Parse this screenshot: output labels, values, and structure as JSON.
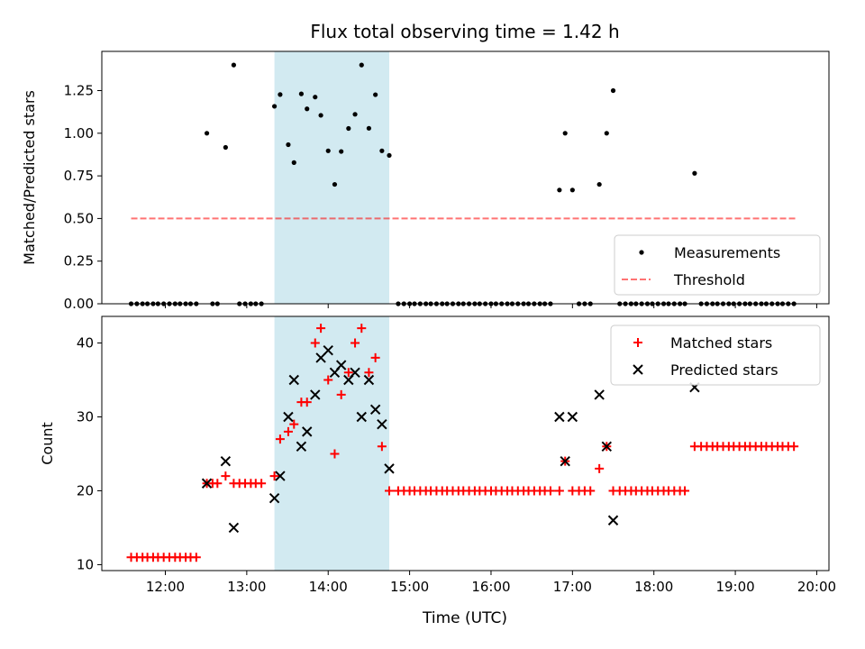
{
  "figure": {
    "title": "Flux total observing time = 1.42 h",
    "xlabel": "Time (UTC)"
  },
  "colors": {
    "highlight": "#add8e6",
    "measurement": "#000000",
    "threshold": "#ff0000",
    "matched": "#ff0000",
    "predicted": "#000000"
  },
  "chart_data": [
    {
      "type": "scatter",
      "panel": "top",
      "title": "Flux total observing time = 1.42 h",
      "xlabel": "",
      "ylabel": "Matched/Predicted stars",
      "xlim": [
        11.22,
        20.15
      ],
      "ylim": [
        0,
        1.48
      ],
      "x_ticks": [
        12,
        13,
        14,
        15,
        16,
        17,
        18,
        19,
        20
      ],
      "x_ticks_labeled": false,
      "y_ticks": [
        0,
        0.25,
        0.5,
        0.75,
        1.0,
        1.25
      ],
      "y_tick_labels": [
        "0.00",
        "0.25",
        "0.50",
        "0.75",
        "1.00",
        "1.25"
      ],
      "highlight_span": [
        13.34,
        14.75
      ],
      "legend": {
        "position": "lower-right",
        "entries": [
          "Measurements",
          "Threshold"
        ]
      },
      "series": [
        {
          "name": "Measurements",
          "kind": "points",
          "x": [
            11.58,
            11.65,
            11.72,
            11.78,
            11.85,
            11.91,
            11.98,
            12.05,
            12.12,
            12.18,
            12.25,
            12.31,
            12.38,
            12.51,
            12.58,
            12.64,
            12.74,
            12.84,
            12.91,
            12.98,
            13.05,
            13.11,
            13.18,
            13.34,
            13.41,
            13.51,
            13.58,
            13.67,
            13.74,
            13.84,
            13.91,
            14.0,
            14.08,
            14.16,
            14.25,
            14.33,
            14.41,
            14.5,
            14.58,
            14.66,
            14.75,
            14.86,
            14.93,
            15.0,
            15.06,
            15.13,
            15.2,
            15.26,
            15.33,
            15.4,
            15.46,
            15.53,
            15.6,
            15.66,
            15.73,
            15.8,
            15.86,
            15.93,
            16.0,
            16.06,
            16.13,
            16.2,
            16.26,
            16.33,
            16.4,
            16.46,
            16.53,
            16.6,
            16.66,
            16.73,
            16.84,
            16.91,
            17.0,
            17.08,
            17.15,
            17.22,
            17.33,
            17.42,
            17.5,
            17.58,
            17.65,
            17.72,
            17.78,
            17.85,
            17.92,
            17.98,
            18.05,
            18.12,
            18.18,
            18.25,
            18.32,
            18.38,
            18.5,
            18.58,
            18.65,
            18.72,
            18.78,
            18.85,
            18.92,
            18.98,
            19.05,
            19.12,
            19.18,
            19.25,
            19.32,
            19.38,
            19.45,
            19.52,
            19.58,
            19.65,
            19.72
          ],
          "y": [
            0,
            0,
            0,
            0,
            0,
            0,
            0,
            0,
            0,
            0,
            0,
            0,
            0,
            1.0,
            0,
            0,
            0.917,
            1.4,
            0,
            0,
            0,
            0,
            0,
            1.158,
            1.227,
            0.933,
            0.828,
            1.231,
            1.143,
            1.212,
            1.105,
            0.897,
            0.7,
            0.893,
            1.028,
            1.111,
            1.4,
            1.029,
            1.226,
            0.897,
            0.87,
            0,
            0,
            0,
            0,
            0,
            0,
            0,
            0,
            0,
            0,
            0,
            0,
            0,
            0,
            0,
            0,
            0,
            0,
            0,
            0,
            0,
            0,
            0,
            0,
            0,
            0,
            0,
            0,
            0,
            0.667,
            1.0,
            0.667,
            0,
            0,
            0,
            0.7,
            1.0,
            1.25,
            0,
            0,
            0,
            0,
            0,
            0,
            0,
            0,
            0,
            0,
            0,
            0,
            0,
            0.765,
            0,
            0,
            0,
            0,
            0,
            0,
            0,
            0,
            0,
            0,
            0,
            0,
            0,
            0,
            0,
            0,
            0,
            0
          ]
        },
        {
          "name": "Threshold",
          "kind": "dashed-line",
          "x": [
            11.58,
            19.75
          ],
          "y": [
            0.5,
            0.5
          ]
        }
      ]
    },
    {
      "type": "scatter",
      "panel": "bottom",
      "xlabel": "Time (UTC)",
      "ylabel": "Count",
      "xlim": [
        11.22,
        20.15
      ],
      "ylim": [
        9.2,
        43.6
      ],
      "x_ticks": [
        12,
        13,
        14,
        15,
        16,
        17,
        18,
        19,
        20
      ],
      "x_tick_labels": [
        "12:00",
        "13:00",
        "14:00",
        "15:00",
        "16:00",
        "17:00",
        "18:00",
        "19:00",
        "20:00"
      ],
      "y_ticks": [
        10,
        20,
        30,
        40
      ],
      "y_tick_labels": [
        "10",
        "20",
        "30",
        "40"
      ],
      "highlight_span": [
        13.34,
        14.75
      ],
      "legend": {
        "position": "upper-right",
        "entries": [
          "Matched stars",
          "Predicted stars"
        ]
      },
      "series": [
        {
          "name": "Matched stars",
          "marker": "plus",
          "x": [
            11.58,
            11.65,
            11.72,
            11.78,
            11.85,
            11.91,
            11.98,
            12.05,
            12.12,
            12.18,
            12.25,
            12.31,
            12.38,
            12.51,
            12.58,
            12.64,
            12.74,
            12.84,
            12.91,
            12.98,
            13.05,
            13.11,
            13.18,
            13.34,
            13.41,
            13.51,
            13.58,
            13.67,
            13.74,
            13.84,
            13.91,
            14.0,
            14.08,
            14.16,
            14.25,
            14.33,
            14.41,
            14.5,
            14.58,
            14.66,
            14.75,
            14.86,
            14.93,
            15.0,
            15.06,
            15.13,
            15.2,
            15.26,
            15.33,
            15.4,
            15.46,
            15.53,
            15.6,
            15.66,
            15.73,
            15.8,
            15.86,
            15.93,
            16.0,
            16.06,
            16.13,
            16.2,
            16.26,
            16.33,
            16.4,
            16.46,
            16.53,
            16.6,
            16.66,
            16.73,
            16.84,
            16.91,
            17.0,
            17.08,
            17.15,
            17.22,
            17.33,
            17.42,
            17.5,
            17.58,
            17.65,
            17.72,
            17.78,
            17.85,
            17.92,
            17.98,
            18.05,
            18.12,
            18.18,
            18.25,
            18.32,
            18.38,
            18.5,
            18.58,
            18.65,
            18.72,
            18.78,
            18.85,
            18.92,
            18.98,
            19.05,
            19.12,
            19.18,
            19.25,
            19.32,
            19.38,
            19.45,
            19.52,
            19.58,
            19.65,
            19.72
          ],
          "y": [
            11,
            11,
            11,
            11,
            11,
            11,
            11,
            11,
            11,
            11,
            11,
            11,
            11,
            21,
            21,
            21,
            22,
            21,
            21,
            21,
            21,
            21,
            21,
            22,
            27,
            28,
            29,
            32,
            32,
            40,
            42,
            35,
            25,
            33,
            36,
            40,
            42,
            36,
            38,
            26,
            20,
            20,
            20,
            20,
            20,
            20,
            20,
            20,
            20,
            20,
            20,
            20,
            20,
            20,
            20,
            20,
            20,
            20,
            20,
            20,
            20,
            20,
            20,
            20,
            20,
            20,
            20,
            20,
            20,
            20,
            20,
            24,
            20,
            20,
            20,
            20,
            23,
            26,
            20,
            20,
            20,
            20,
            20,
            20,
            20,
            20,
            20,
            20,
            20,
            20,
            20,
            20,
            26,
            26,
            26,
            26,
            26,
            26,
            26,
            26,
            26,
            26,
            26,
            26,
            26,
            26,
            26,
            26,
            26,
            26,
            26
          ]
        },
        {
          "name": "Predicted stars",
          "marker": "cross",
          "x": [
            12.51,
            12.74,
            12.84,
            13.34,
            13.41,
            13.51,
            13.58,
            13.67,
            13.74,
            13.84,
            13.91,
            14.0,
            14.08,
            14.16,
            14.25,
            14.33,
            14.41,
            14.5,
            14.58,
            14.66,
            14.75,
            16.84,
            16.91,
            17.0,
            17.33,
            17.42,
            17.5,
            18.5
          ],
          "y": [
            21,
            24,
            15,
            19,
            22,
            30,
            35,
            26,
            28,
            33,
            38,
            39,
            36,
            37,
            35,
            36,
            30,
            35,
            31,
            29,
            23,
            30,
            24,
            30,
            33,
            26,
            16,
            34
          ]
        }
      ]
    }
  ]
}
